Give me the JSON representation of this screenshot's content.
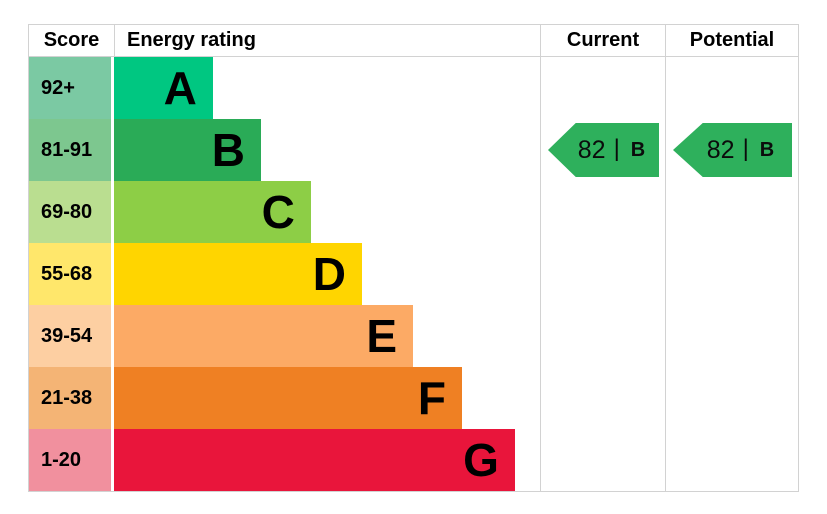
{
  "chart_data": {
    "type": "table",
    "title": "Energy rating",
    "bands": [
      {
        "band": "A",
        "score_range": "92+"
      },
      {
        "band": "B",
        "score_range": "81-91"
      },
      {
        "band": "C",
        "score_range": "69-80"
      },
      {
        "band": "D",
        "score_range": "55-68"
      },
      {
        "band": "E",
        "score_range": "39-54"
      },
      {
        "band": "F",
        "score_range": "21-38"
      },
      {
        "band": "G",
        "score_range": "1-20"
      }
    ],
    "current": {
      "score": 82,
      "band": "B"
    },
    "potential": {
      "score": 82,
      "band": "B"
    },
    "legend_position": "none",
    "grid": false
  },
  "header": {
    "score": "Score",
    "energy_rating": "Energy rating",
    "current": "Current",
    "potential": "Potential"
  },
  "bands": [
    {
      "letter": "A",
      "score": "92+",
      "bar_color": "#00c781",
      "score_color": "#7bc9a3",
      "width_pct": 23.2
    },
    {
      "letter": "B",
      "score": "81-91",
      "bar_color": "#2aab57",
      "score_color": "#7dc78f",
      "width_pct": 34.5
    },
    {
      "letter": "C",
      "score": "69-80",
      "bar_color": "#8dce46",
      "score_color": "#bade90",
      "width_pct": 46.2
    },
    {
      "letter": "D",
      "score": "55-68",
      "bar_color": "#ffd500",
      "score_color": "#ffe76b",
      "width_pct": 58.2
    },
    {
      "letter": "E",
      "score": "39-54",
      "bar_color": "#fcaa65",
      "score_color": "#fdcfa2",
      "width_pct": 70.2
    },
    {
      "letter": "F",
      "score": "21-38",
      "bar_color": "#ef8023",
      "score_color": "#f4b475",
      "width_pct": 81.7
    },
    {
      "letter": "G",
      "score": "1-20",
      "bar_color": "#e9153b",
      "score_color": "#f1909e",
      "width_pct": 94.1
    }
  ],
  "current_arrow": {
    "value": "82",
    "divider": "|",
    "band": "B",
    "color": "#2eb05c",
    "band_index": 1
  },
  "potential_arrow": {
    "value": "82",
    "divider": "|",
    "band": "B",
    "color": "#2eb05c",
    "band_index": 1
  },
  "colors": {
    "border": "#d2d2d2",
    "text": "#000000",
    "background": "#ffffff"
  }
}
